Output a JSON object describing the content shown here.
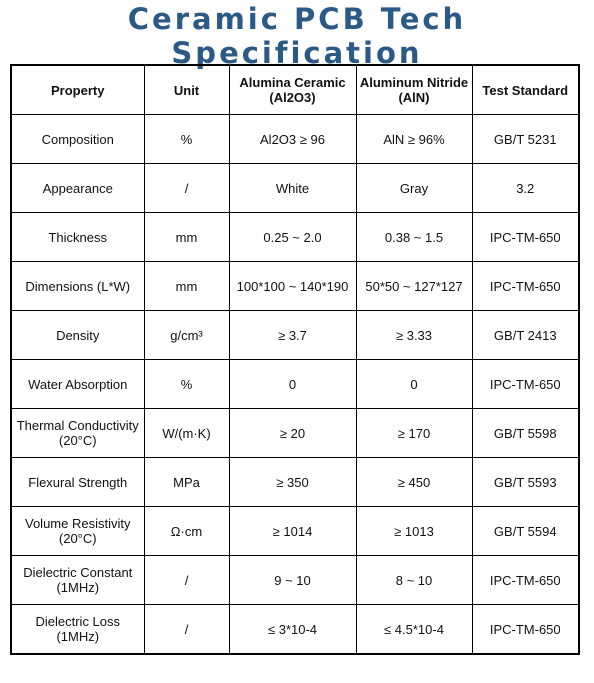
{
  "header": {
    "title": "Ceramic PCB Tech Specification"
  },
  "table": {
    "columns": [
      "Property",
      "Unit",
      "Alumina Ceramic\n(Al2O3)",
      "Aluminum Nitride\n(AlN)",
      "Test Standard"
    ],
    "rows": [
      [
        "Composition",
        "%",
        "Al2O3 ≥ 96",
        "AlN ≥ 96%",
        "GB/T 5231"
      ],
      [
        "Appearance",
        "/",
        "White",
        "Gray",
        "3.2"
      ],
      [
        "Thickness",
        "mm",
        "0.25 ~ 2.0",
        "0.38 ~ 1.5",
        "IPC-TM-650"
      ],
      [
        "Dimensions (L*W)",
        "mm",
        "100*100 ~ 140*190",
        "50*50 ~ 127*127",
        "IPC-TM-650"
      ],
      [
        "Density",
        "g/cm³",
        "≥ 3.7",
        "≥ 3.33",
        "GB/T 2413"
      ],
      [
        "Water Absorption",
        "%",
        "0",
        "0",
        "IPC-TM-650"
      ],
      [
        "Thermal Conductivity\n(20°C)",
        "W/(m·K)",
        "≥ 20",
        "≥ 170",
        "GB/T 5598"
      ],
      [
        "Flexural Strength",
        "MPa",
        "≥ 350",
        "≥ 450",
        "GB/T 5593"
      ],
      [
        "Volume Resistivity\n(20°C)",
        "Ω·cm",
        "≥ 1014",
        "≥ 1013",
        "GB/T 5594"
      ],
      [
        "Dielectric Constant\n(1MHz)",
        "/",
        "9 ~ 10",
        "8 ~ 10",
        "IPC-TM-650"
      ],
      [
        "Dielectric Loss (1MHz)",
        "/",
        "≤ 3*10-4",
        "≤ 4.5*10-4",
        "IPC-TM-650"
      ]
    ]
  }
}
